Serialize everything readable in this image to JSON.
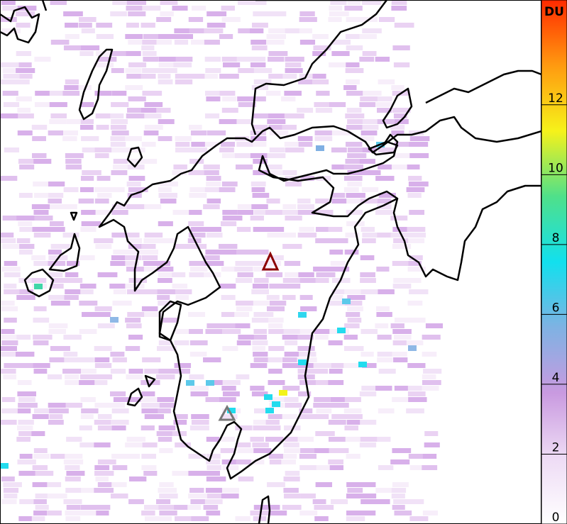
{
  "colorbar": {
    "label": "DU",
    "lim": [
      0,
      15
    ],
    "ticks": [
      0,
      2,
      4,
      6,
      8,
      10,
      12
    ],
    "colors": [
      "#ffffff",
      "#eedcf5",
      "#c99ae0",
      "#7fb2e3",
      "#12e0ee",
      "#4fe08a",
      "#f6f21a",
      "#ff9a10",
      "#ff2a00"
    ]
  }
}
